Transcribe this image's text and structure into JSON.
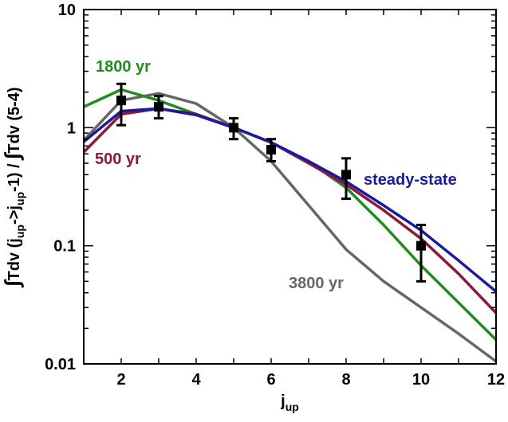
{
  "chart_data": {
    "type": "line",
    "xlabel_main": "j",
    "xlabel_sub": "up",
    "ylabel_parts": [
      {
        "t": "∫",
        "s": "n"
      },
      {
        "t": "Tdv (j",
        "s": "n"
      },
      {
        "t": "up",
        "s": "sub"
      },
      {
        "t": "->j",
        "s": "n"
      },
      {
        "t": "up",
        "s": "sub"
      },
      {
        "t": "-1) / ",
        "s": "n"
      },
      {
        "t": "∫",
        "s": "n"
      },
      {
        "t": "Tdv (5-4)",
        "s": "n"
      }
    ],
    "xlim": [
      1,
      12
    ],
    "ylim": [
      0.01,
      10
    ],
    "yscale": "log",
    "x_ticks": [
      2,
      4,
      6,
      8,
      10,
      12
    ],
    "y_ticks": [
      {
        "value": 0.01,
        "label": "0.01"
      },
      {
        "value": 0.1,
        "label": "0.1"
      },
      {
        "value": 1,
        "label": "1"
      },
      {
        "value": 10,
        "label": "10"
      }
    ],
    "series": [
      {
        "name": "3800 yr",
        "color": "#666666",
        "x": [
          1,
          2,
          3,
          4,
          5,
          6,
          7,
          8,
          9,
          10,
          11,
          12
        ],
        "y": [
          0.78,
          1.7,
          1.95,
          1.6,
          1.0,
          0.52,
          0.22,
          0.093,
          0.05,
          0.03,
          0.018,
          0.0105
        ]
      },
      {
        "name": "1800 yr",
        "color": "#228b22",
        "x": [
          1,
          2,
          3,
          4,
          5,
          6,
          7,
          8,
          9,
          10,
          11,
          12
        ],
        "y": [
          1.5,
          2.1,
          1.7,
          1.3,
          1.0,
          0.75,
          0.52,
          0.31,
          0.15,
          0.068,
          0.033,
          0.016
        ]
      },
      {
        "name": "500 yr",
        "color": "#8b1a3a",
        "x": [
          1,
          2,
          3,
          4,
          5,
          6,
          7,
          8,
          9,
          10,
          11,
          12
        ],
        "y": [
          0.62,
          1.3,
          1.45,
          1.3,
          1.0,
          0.75,
          0.5,
          0.33,
          0.2,
          0.115,
          0.058,
          0.027
        ]
      },
      {
        "name": "steady-state",
        "color": "#1a1a9c",
        "x": [
          1,
          2,
          3,
          4,
          5,
          6,
          7,
          8,
          9,
          10,
          11,
          12
        ],
        "y": [
          0.76,
          1.38,
          1.45,
          1.28,
          1.0,
          0.75,
          0.52,
          0.35,
          0.22,
          0.135,
          0.075,
          0.041
        ]
      }
    ],
    "observations": [
      {
        "x": 2,
        "y": 1.7,
        "lo": 1.05,
        "hi": 2.35
      },
      {
        "x": 3,
        "y": 1.5,
        "lo": 1.2,
        "hi": 1.85
      },
      {
        "x": 5,
        "y": 1.0,
        "lo": 0.8,
        "hi": 1.2
      },
      {
        "x": 6,
        "y": 0.65,
        "lo": 0.52,
        "hi": 0.8
      },
      {
        "x": 8,
        "y": 0.4,
        "lo": 0.25,
        "hi": 0.55
      },
      {
        "x": 10,
        "y": 0.1,
        "lo": 0.05,
        "hi": 0.15
      }
    ],
    "annotations": [
      {
        "text": "1800 yr",
        "series": "1800 yr"
      },
      {
        "text": "500 yr",
        "series": "500 yr"
      },
      {
        "text": "steady-state",
        "series": "steady-state"
      },
      {
        "text": "3800 yr",
        "series": "3800 yr"
      }
    ],
    "grid": false,
    "legend": "none"
  }
}
